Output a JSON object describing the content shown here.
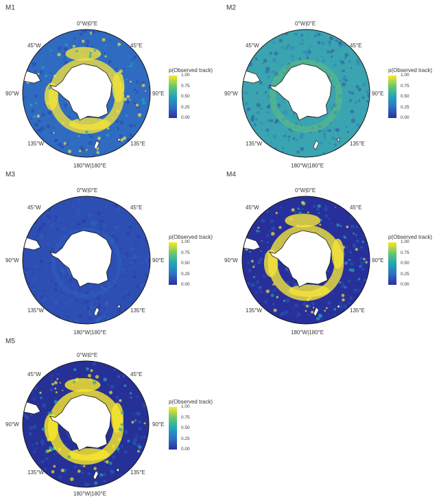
{
  "colorbar": {
    "title": "p(Observed track)",
    "ticks": [
      "1.00",
      "0.75",
      "0.50",
      "0.25",
      "0.00"
    ],
    "colors": [
      "#2b2f9b",
      "#2f6fc4",
      "#20a5b8",
      "#69c86a",
      "#fde724"
    ]
  },
  "coords": {
    "top": "0°W|0°E",
    "bottom": "180°W|180°E",
    "nw": "45°W",
    "ne": "45°E",
    "w": "90°W",
    "e": "90°E",
    "sw": "135°W",
    "se": "135°E"
  },
  "panels": [
    {
      "label": "M1",
      "ocean": "#2f6bc1",
      "ring": "#f3e33b",
      "ring_level": 0.85
    },
    {
      "label": "M2",
      "ocean": "#3aa4b0",
      "ring": "#5fbf7f",
      "ring_level": 0.45
    },
    {
      "label": "M3",
      "ocean": "#2d4fb3",
      "ring": "#2f62bf",
      "ring_level": 0.15
    },
    {
      "label": "M4",
      "ocean": "#27309a",
      "ring": "#f3e33b",
      "ring_level": 0.9
    },
    {
      "label": "M5",
      "ocean": "#263197",
      "ring": "#f7e52c",
      "ring_level": 0.95
    }
  ]
}
